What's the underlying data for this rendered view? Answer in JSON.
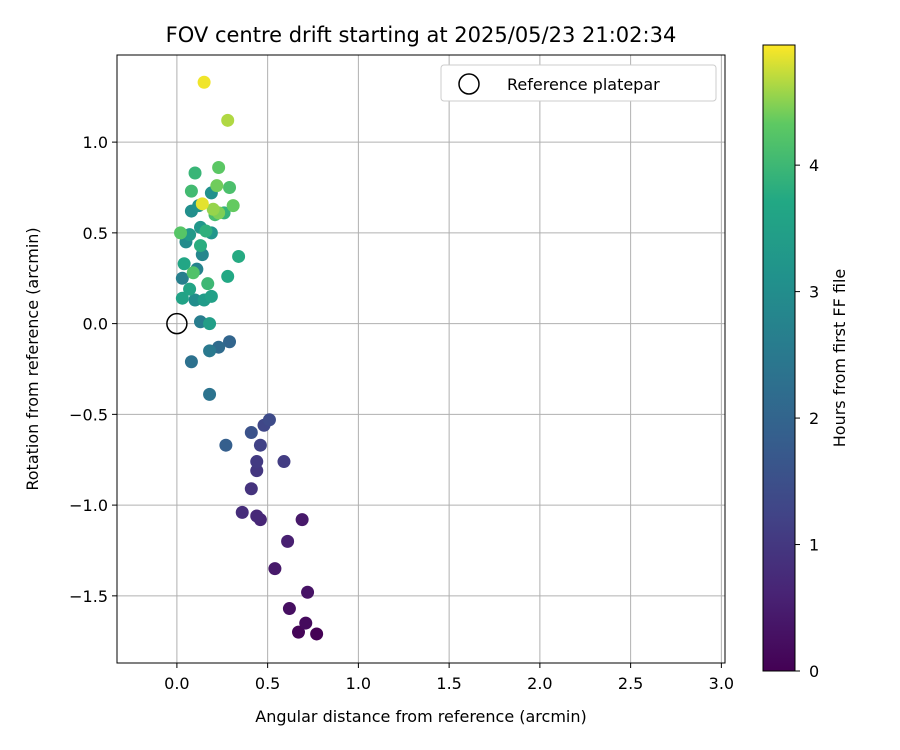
{
  "chart_data": {
    "type": "scatter",
    "title": "FOV centre drift starting at 2025/05/23 21:02:34",
    "xlabel": "Angular distance from reference (arcmin)",
    "ylabel": "Rotation from reference (arcmin)",
    "xlim": [
      -0.33,
      3.02
    ],
    "ylim": [
      -1.87,
      1.48
    ],
    "xticks": [
      0.0,
      0.5,
      1.0,
      1.5,
      2.0,
      2.5,
      3.0
    ],
    "xtick_labels": [
      "0.0",
      "0.5",
      "1.0",
      "1.5",
      "2.0",
      "2.5",
      "3.0"
    ],
    "yticks": [
      -1.5,
      -1.0,
      -0.5,
      0.0,
      0.5,
      1.0
    ],
    "ytick_labels": [
      "−1.5",
      "−1.0",
      "−0.5",
      "0.0",
      "0.5",
      "1.0"
    ],
    "grid": true,
    "legend": {
      "position": "upper right",
      "entries": [
        "Reference platepar"
      ]
    },
    "reference_point": {
      "x": 0.0,
      "y": 0.0,
      "marker": "open-circle"
    },
    "colorbar": {
      "label": "Hours from first FF file",
      "colormap": "viridis",
      "range": [
        0,
        4.95
      ],
      "ticks": [
        0,
        1,
        2,
        3,
        4
      ],
      "tick_labels": [
        "0",
        "1",
        "2",
        "3",
        "4"
      ]
    },
    "points": [
      {
        "x": 0.77,
        "y": -1.71,
        "t": 0.0
      },
      {
        "x": 0.67,
        "y": -1.7,
        "t": 0.08
      },
      {
        "x": 0.71,
        "y": -1.65,
        "t": 0.16
      },
      {
        "x": 0.62,
        "y": -1.57,
        "t": 0.24
      },
      {
        "x": 0.72,
        "y": -1.48,
        "t": 0.32
      },
      {
        "x": 0.54,
        "y": -1.35,
        "t": 0.42
      },
      {
        "x": 0.69,
        "y": -1.08,
        "t": 0.42
      },
      {
        "x": 0.61,
        "y": -1.2,
        "t": 0.55
      },
      {
        "x": 0.46,
        "y": -1.08,
        "t": 0.65
      },
      {
        "x": 0.44,
        "y": -1.06,
        "t": 0.72
      },
      {
        "x": 0.36,
        "y": -1.04,
        "t": 0.8
      },
      {
        "x": 0.41,
        "y": -0.91,
        "t": 0.9
      },
      {
        "x": 0.44,
        "y": -0.81,
        "t": 0.98
      },
      {
        "x": 0.44,
        "y": -0.76,
        "t": 1.05
      },
      {
        "x": 0.59,
        "y": -0.76,
        "t": 1.1
      },
      {
        "x": 0.46,
        "y": -0.67,
        "t": 1.2
      },
      {
        "x": 0.48,
        "y": -0.56,
        "t": 1.3
      },
      {
        "x": 0.51,
        "y": -0.53,
        "t": 1.4
      },
      {
        "x": 0.41,
        "y": -0.6,
        "t": 1.55
      },
      {
        "x": 0.27,
        "y": -0.67,
        "t": 1.85
      },
      {
        "x": 0.29,
        "y": -0.1,
        "t": 2.0
      },
      {
        "x": 0.23,
        "y": -0.13,
        "t": 2.15
      },
      {
        "x": 0.08,
        "y": -0.21,
        "t": 2.3
      },
      {
        "x": 0.18,
        "y": -0.39,
        "t": 2.35
      },
      {
        "x": 0.18,
        "y": -0.15,
        "t": 2.5
      },
      {
        "x": 0.13,
        "y": 0.01,
        "t": 2.6
      },
      {
        "x": 0.03,
        "y": 0.25,
        "t": 2.65
      },
      {
        "x": 0.11,
        "y": 0.3,
        "t": 2.75
      },
      {
        "x": 0.14,
        "y": 0.38,
        "t": 2.85
      },
      {
        "x": 0.05,
        "y": 0.45,
        "t": 2.95
      },
      {
        "x": 0.1,
        "y": 0.13,
        "t": 3.0
      },
      {
        "x": 0.08,
        "y": 0.62,
        "t": 3.05
      },
      {
        "x": 0.19,
        "y": 0.72,
        "t": 3.1
      },
      {
        "x": 0.12,
        "y": 0.65,
        "t": 3.15
      },
      {
        "x": 0.19,
        "y": 0.5,
        "t": 3.2
      },
      {
        "x": 0.13,
        "y": 0.53,
        "t": 3.25
      },
      {
        "x": 0.07,
        "y": 0.49,
        "t": 3.3
      },
      {
        "x": 0.15,
        "y": 0.13,
        "t": 3.35
      },
      {
        "x": 0.18,
        "y": 0.0,
        "t": 3.45
      },
      {
        "x": 0.19,
        "y": 0.15,
        "t": 3.5
      },
      {
        "x": 0.03,
        "y": 0.14,
        "t": 3.55
      },
      {
        "x": 0.07,
        "y": 0.19,
        "t": 3.6
      },
      {
        "x": 0.04,
        "y": 0.33,
        "t": 3.65
      },
      {
        "x": 0.28,
        "y": 0.26,
        "t": 3.7
      },
      {
        "x": 0.34,
        "y": 0.37,
        "t": 3.75
      },
      {
        "x": 0.13,
        "y": 0.43,
        "t": 3.8
      },
      {
        "x": 0.16,
        "y": 0.51,
        "t": 3.85
      },
      {
        "x": 0.26,
        "y": 0.61,
        "t": 3.9
      },
      {
        "x": 0.1,
        "y": 0.83,
        "t": 3.95
      },
      {
        "x": 0.17,
        "y": 0.22,
        "t": 4.0
      },
      {
        "x": 0.08,
        "y": 0.73,
        "t": 4.05
      },
      {
        "x": 0.21,
        "y": 0.6,
        "t": 4.1
      },
      {
        "x": 0.29,
        "y": 0.75,
        "t": 4.15
      },
      {
        "x": 0.09,
        "y": 0.28,
        "t": 4.2
      },
      {
        "x": 0.02,
        "y": 0.5,
        "t": 4.25
      },
      {
        "x": 0.23,
        "y": 0.86,
        "t": 4.3
      },
      {
        "x": 0.31,
        "y": 0.65,
        "t": 4.35
      },
      {
        "x": 0.22,
        "y": 0.76,
        "t": 4.4
      },
      {
        "x": 0.23,
        "y": 0.61,
        "t": 4.45
      },
      {
        "x": 0.2,
        "y": 0.63,
        "t": 4.55
      },
      {
        "x": 0.28,
        "y": 1.12,
        "t": 4.65
      },
      {
        "x": 0.14,
        "y": 0.66,
        "t": 4.85
      },
      {
        "x": 0.15,
        "y": 1.33,
        "t": 4.9
      }
    ]
  },
  "colors": {
    "axis": "#000000",
    "grid": "#b0b0b0",
    "legend_border": "#cccccc"
  }
}
